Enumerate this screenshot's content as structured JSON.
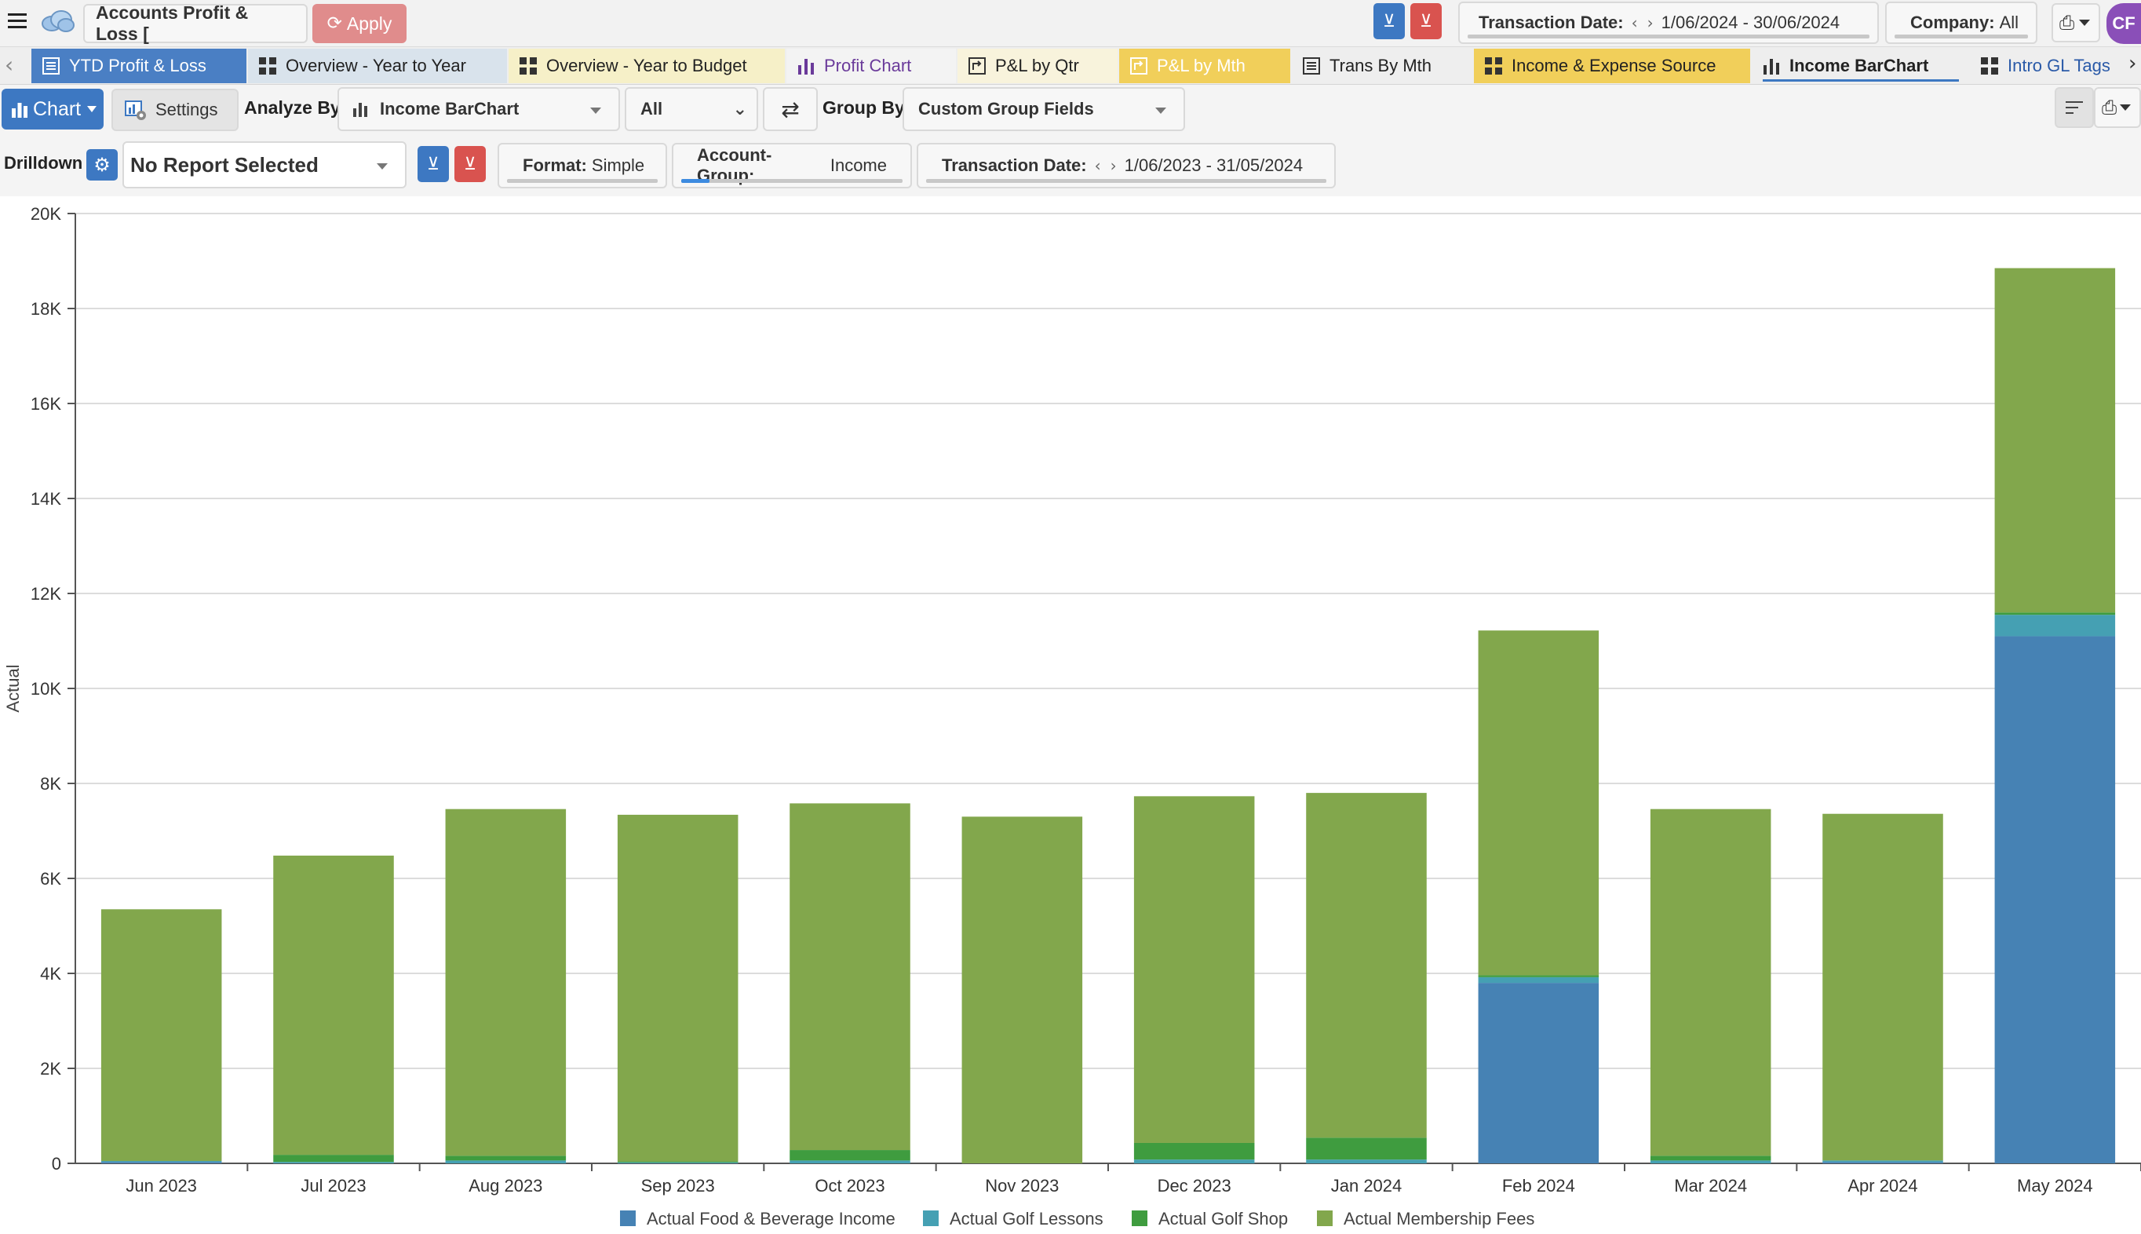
{
  "toolbar": {
    "report_title": "Accounts Profit & Loss [",
    "apply_label": "Apply",
    "transaction_date_label": "Transaction Date:",
    "transaction_date_value": "1/06/2024 - 30/06/2024",
    "company_label": "Company:",
    "company_value": "All",
    "avatar_initials": "CF"
  },
  "tabs": [
    {
      "label": "YTD Profit & Loss",
      "color": "#4a7fc4",
      "text_color": "#ffffff",
      "icon": "list-icon"
    },
    {
      "label": "Overview - Year to Year",
      "color": "#d9e3ec",
      "text_color": "#222222",
      "icon": "dashboard-icon"
    },
    {
      "label": "Overview - Year to Budget",
      "color": "#f6f0c8",
      "text_color": "#222222",
      "icon": "dashboard-icon"
    },
    {
      "label": "Profit Chart",
      "color": "#f3f3f3",
      "text_color": "#6a3a9a",
      "icon": "bar-chart-icon"
    },
    {
      "label": "P&L by Qtr",
      "color": "#f8f3dc",
      "text_color": "#222222",
      "icon": "pivot-icon"
    },
    {
      "label": "P&L by Mth",
      "color": "#f1cf5a",
      "text_color": "#ffffff",
      "icon": "pivot-icon"
    },
    {
      "label": "Trans By Mth",
      "color": "#eeeeee",
      "text_color": "#222222",
      "icon": "list-icon"
    },
    {
      "label": "Income & Expense Source",
      "color": "#f1cf5a",
      "text_color": "#222222",
      "icon": "dashboard-icon"
    },
    {
      "label": "Income BarChart",
      "color": "#eeeeee",
      "text_color": "#222222",
      "icon": "bar-chart-icon"
    },
    {
      "label": "Intro GL Tags",
      "color": "#eeeeee",
      "text_color": "#2a5aa8",
      "icon": "dashboard-icon"
    }
  ],
  "controls": {
    "chart_label": "Chart",
    "settings_label": "Settings",
    "analyze_by_label": "Analyze By",
    "analyze_by_value": "Income BarChart",
    "all_value": "All",
    "group_by_label": "Group By",
    "group_by_value": "Custom Group Fields"
  },
  "drilldown": {
    "label": "Drilldown",
    "report_value": "No Report Selected",
    "format_label": "Format:",
    "format_value": "Simple",
    "account_group_label": "Account-Group:",
    "account_group_value": "Income",
    "transaction_date_label": "Transaction Date:",
    "transaction_date_value": "1/06/2023 - 31/05/2024"
  },
  "chart_data": {
    "type": "bar",
    "stacked": true,
    "ylabel": "Actual",
    "ylim": [
      0,
      20000
    ],
    "yticks": [
      "0",
      "2K",
      "4K",
      "6K",
      "8K",
      "10K",
      "12K",
      "14K",
      "16K",
      "18K",
      "20K"
    ],
    "categories": [
      "Jun 2023",
      "Jul 2023",
      "Aug 2023",
      "Sep 2023",
      "Oct 2023",
      "Nov 2023",
      "Dec 2023",
      "Jan 2024",
      "Feb 2024",
      "Mar 2024",
      "Apr 2024",
      "May 2024"
    ],
    "legend_position": "bottom",
    "grid": true,
    "series": [
      {
        "name": "Actual Food & Beverage Income",
        "color": "#4682b4",
        "values": [
          30,
          0,
          0,
          0,
          0,
          0,
          0,
          0,
          3800,
          0,
          30,
          11100
        ]
      },
      {
        "name": "Actual Golf Lessons",
        "color": "#45a0b3",
        "values": [
          20,
          30,
          60,
          20,
          60,
          0,
          80,
          80,
          120,
          60,
          30,
          450
        ]
      },
      {
        "name": "Actual Golf Shop",
        "color": "#3f9c3f",
        "values": [
          0,
          150,
          100,
          20,
          220,
          0,
          350,
          460,
          40,
          100,
          0,
          50
        ]
      },
      {
        "name": "Actual Membership Fees",
        "color": "#82a74c",
        "values": [
          5300,
          6300,
          7300,
          7300,
          7300,
          7300,
          7300,
          7260,
          7260,
          7300,
          7300,
          7250
        ]
      }
    ]
  }
}
